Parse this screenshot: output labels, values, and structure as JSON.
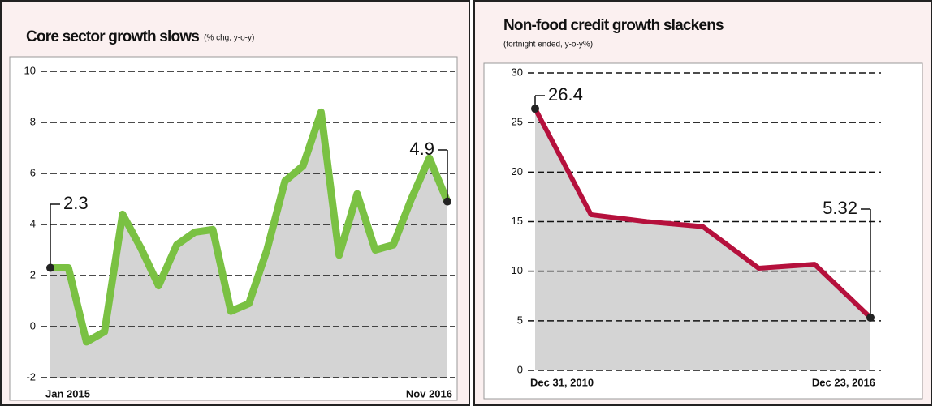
{
  "chart_data": [
    {
      "type": "line",
      "title": "Core sector growth slows",
      "subtitle": "(% chg, y-o-y)",
      "categories": [
        "Jan 2015",
        null,
        null,
        null,
        null,
        null,
        null,
        null,
        null,
        null,
        null,
        null,
        null,
        null,
        null,
        null,
        null,
        null,
        null,
        null,
        null,
        null,
        "Nov 2016"
      ],
      "values": [
        2.3,
        2.3,
        -0.6,
        -0.2,
        4.4,
        3.1,
        1.6,
        3.2,
        3.7,
        3.8,
        0.6,
        0.9,
        3.0,
        5.7,
        6.3,
        8.4,
        2.8,
        5.2,
        3.0,
        3.2,
        5.0,
        6.6,
        4.9
      ],
      "value_labels": [
        "2.3",
        null,
        null,
        null,
        null,
        null,
        null,
        null,
        null,
        null,
        null,
        null,
        null,
        null,
        null,
        null,
        null,
        null,
        null,
        null,
        null,
        null,
        "4.9"
      ],
      "color": "#7ac143",
      "ylim": [
        -2,
        10
      ],
      "yticks": [
        -2,
        0,
        2,
        4,
        6,
        8,
        10
      ],
      "grid": true
    },
    {
      "type": "line",
      "title": "Non-food credit growth slackens",
      "subtitle": "(fortnight ended, y-o-y%)",
      "categories": [
        "Dec 31, 2010",
        null,
        null,
        null,
        null,
        null,
        "Dec 23, 2016"
      ],
      "values": [
        26.4,
        15.7,
        15.0,
        14.5,
        10.3,
        10.7,
        5.32
      ],
      "value_labels": [
        "26.4",
        null,
        null,
        null,
        null,
        null,
        "5.32"
      ],
      "color": "#b5103c",
      "ylim": [
        0,
        30
      ],
      "yticks": [
        0,
        5,
        10,
        15,
        20,
        25,
        30
      ],
      "grid": true
    }
  ]
}
